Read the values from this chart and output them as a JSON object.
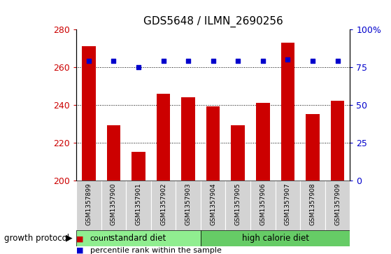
{
  "title": "GDS5648 / ILMN_2690256",
  "samples": [
    "GSM1357899",
    "GSM1357900",
    "GSM1357901",
    "GSM1357902",
    "GSM1357903",
    "GSM1357904",
    "GSM1357905",
    "GSM1357906",
    "GSM1357907",
    "GSM1357908",
    "GSM1357909"
  ],
  "counts": [
    271,
    229,
    215,
    246,
    244,
    239,
    229,
    241,
    273,
    235,
    242
  ],
  "percentile_ranks": [
    79,
    79,
    75,
    79,
    79,
    79,
    79,
    79,
    80,
    79,
    79
  ],
  "ylim_left": [
    200,
    280
  ],
  "ylim_right": [
    0,
    100
  ],
  "yticks_left": [
    200,
    220,
    240,
    260,
    280
  ],
  "yticks_right": [
    0,
    25,
    50,
    75,
    100
  ],
  "ytick_labels_right": [
    "0",
    "25",
    "50",
    "75",
    "100%"
  ],
  "bar_color": "#cc0000",
  "dot_color": "#0000cc",
  "grid_color": "#000000",
  "standard_diet_indices": [
    0,
    1,
    2,
    3,
    4
  ],
  "high_calorie_indices": [
    5,
    6,
    7,
    8,
    9,
    10
  ],
  "standard_diet_label": "standard diet",
  "high_calorie_label": "high calorie diet",
  "group_label": "growth protocol",
  "legend_count_label": "count",
  "legend_percentile_label": "percentile rank within the sample",
  "standard_diet_color": "#90ee90",
  "high_calorie_color": "#66cc66",
  "sample_bg_color": "#d3d3d3",
  "bar_width": 0.55,
  "fig_width": 5.59,
  "fig_height": 3.63,
  "fig_dpi": 100
}
